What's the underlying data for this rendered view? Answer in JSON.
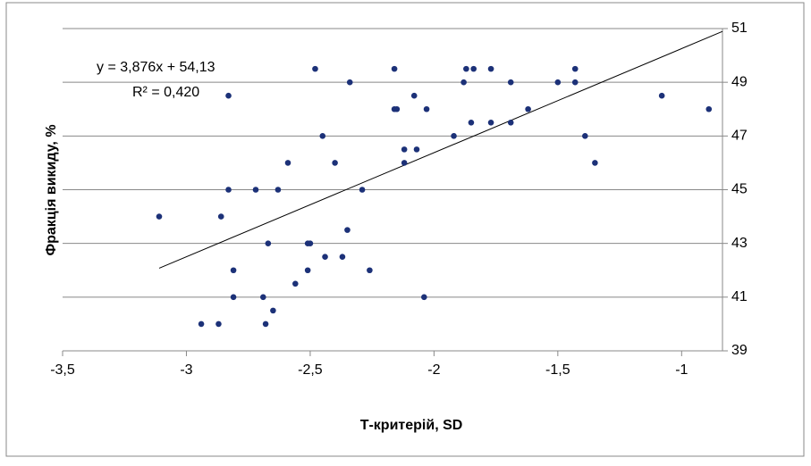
{
  "chart_data": {
    "type": "scatter",
    "x_label": "Т-критерій, SD",
    "y_label": "Фракція викиду, %",
    "xlim": [
      -3.5,
      -0.835
    ],
    "ylim": [
      39,
      51
    ],
    "xticks": [
      {
        "value": -3.5,
        "label": "-3,5"
      },
      -3,
      {
        "value": -2.5,
        "label": "-2,5"
      },
      -2,
      {
        "value": -1.5,
        "label": "-1,5"
      },
      -1
    ],
    "yticks": [
      39,
      41,
      43,
      45,
      47,
      49,
      51
    ],
    "grid": true,
    "y_axis_side": "right",
    "color": "#1c3178",
    "trendline": {
      "slope": 3.876,
      "intercept": 54.13,
      "equation": "y = 3,876x + 54,13",
      "r2": "R² = 0,420"
    },
    "series": [
      {
        "name": null,
        "color": "#1c3178",
        "x": [
          -3.11,
          -2.83,
          -2.83,
          -2.86,
          -2.81,
          -2.81,
          -2.94,
          -2.87,
          -2.72,
          -2.67,
          -2.69,
          -2.68,
          -2.65,
          -2.63,
          -2.59,
          -2.56,
          -2.51,
          -2.5,
          -2.51,
          -2.48,
          -2.45,
          -2.44,
          -2.4,
          -2.37,
          -2.35,
          -2.34,
          -2.29,
          -2.26,
          -2.16,
          -2.15,
          -2.16,
          -2.12,
          -2.12,
          -2.08,
          -2.07,
          -2.03,
          -2.04,
          -1.92,
          -1.88,
          -1.87,
          -1.84,
          -1.85,
          -1.77,
          -1.77,
          -1.69,
          -1.69,
          -1.62,
          -1.5,
          -1.43,
          -1.43,
          -1.39,
          -1.35,
          -1.08,
          -0.89
        ],
        "values": [
          44,
          45,
          48.5,
          44,
          42,
          41,
          40,
          40,
          45,
          43,
          41,
          40,
          40.5,
          45,
          46,
          41.5,
          43,
          43,
          42,
          49.5,
          47,
          42.5,
          46,
          42.5,
          43.5,
          49,
          45,
          42,
          48,
          48,
          49.5,
          46.5,
          46,
          48.5,
          46.5,
          48,
          41,
          47,
          49,
          49.5,
          49.5,
          47.5,
          49.5,
          47.5,
          49,
          47.5,
          48,
          49,
          49.5,
          49,
          47,
          46,
          48.5,
          48
        ]
      }
    ]
  }
}
